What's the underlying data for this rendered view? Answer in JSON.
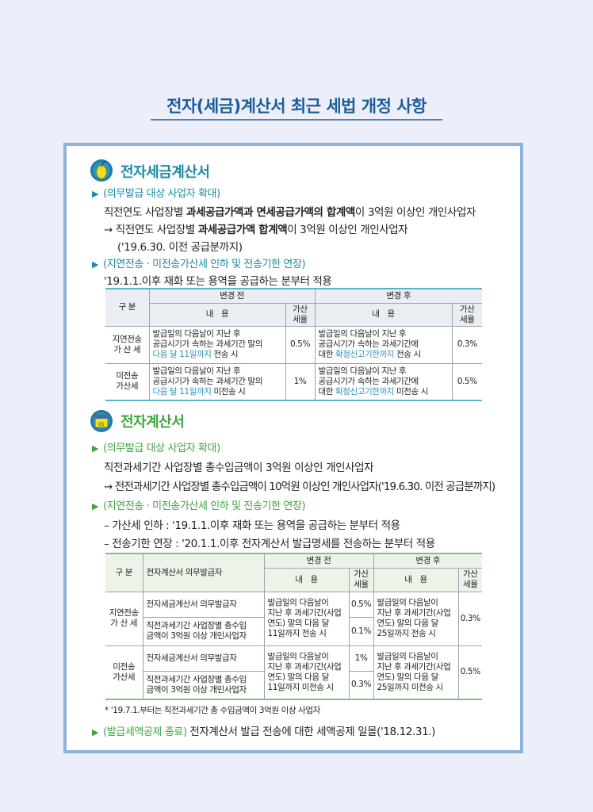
{
  "title": "전자(세금)계산서 최근 세법 개정 사항",
  "colors": {
    "section1": "#1a8aa6",
    "section2": "#3ea43e",
    "title": "#1b5c9c",
    "highlight": "#2a8fc0"
  },
  "section1": {
    "icon": "mouse-icon",
    "heading": "전자세금계산서",
    "sub1": "(의무발급 대상 사업자 확대)",
    "line1": [
      {
        "t": "직전연도 사업장별 ",
        "b": false
      },
      {
        "t": "과세공급가액과 면세공급가액의 합계액",
        "b": true
      },
      {
        "t": "이 3억원 이상인 개인사업자",
        "b": false
      }
    ],
    "line2": [
      {
        "t": "→ 직전연도 사업장별 ",
        "b": false
      },
      {
        "t": "과세공급가액 합계액",
        "b": true
      },
      {
        "t": "이 3억원 이상인 개인사업자",
        "b": false
      }
    ],
    "line3": "('19.6.30. 이전 공급분까지)",
    "sub2": "(지연전송 · 미전송가산세 인하 및 전송기한 연장)",
    "line4": "'19.1.1.이후 재화 또는 용역을 공급하는 분부터 적용",
    "table": {
      "h_category": "구 분",
      "h_before": "변경 전",
      "h_after": "변경 후",
      "h_content": "내　용",
      "h_rate": "가산\n세율",
      "rows": [
        {
          "label": "지연전송\n가 산 세",
          "before_pre": "발급일의 다음날이 지난 후\n공급시기가 속하는 과세기간 말의\n",
          "before_hl": "다음 달 11일까지",
          "before_post": " 전송 시",
          "before_rate": "0.5%",
          "after_pre": "발급일의 다음날이 지난 후\n공급시기가 속하는 과세기간에\n대한 ",
          "after_hl": "확정신고기한까지",
          "after_post": " 전송 시",
          "after_rate": "0.3%"
        },
        {
          "label": "미전송\n가산세",
          "before_pre": "발급일의 다음날이 지난 후\n공급시기가 속하는 과세기간 말의\n",
          "before_hl": "다음 달 11일까지",
          "before_post": " 미전송 시",
          "before_rate": "1%",
          "after_pre": "발급일의 다음날이 지난 후\n공급시기가 속하는 과세기간에\n대한 ",
          "after_hl": "확정신고기한까지",
          "after_post": " 미전송 시",
          "after_rate": "0.5%"
        }
      ]
    }
  },
  "section2": {
    "icon": "calendar-icon",
    "icon_text": "01",
    "heading": "전자계산서",
    "sub1": "(의무발급 대상 사업자 확대)",
    "line1": "직전과세기간 사업장별 총수입금액이 3억원 이상인 개인사업자",
    "line2": "→ 전전과세기간 사업장별 총수입금액이 10억원 이상인 개인사업자('19.6.30. 이전 공급분까지)",
    "sub2": "(지연전송 · 미전송가산세 인하 및 전송기한 연장)",
    "line3": "– 가산세 인하 : '19.1.1.이후 재화 또는 용역을 공급하는 분부터 적용",
    "line4": "– 전송기한 연장 : '20.1.1.이후 전자계산서 발급명세를 전송하는 분부터 적용",
    "table": {
      "h_category": "구 분",
      "h_issuer": "전자계산서 의무발급자",
      "h_before": "변경 전",
      "h_after": "변경 후",
      "h_content": "내　용",
      "h_rate": "가산\n세율",
      "groups": [
        {
          "label": "지연전송\n가 산 세",
          "issuer1": "전자세금계산서 의무발급자",
          "issuer2": "직전과세기간 사업장별 총수입\n금액이 3억원 이상 개인사업자",
          "before": "발급일의 다음날이\n지난 후 과세기간(사업\n연도) 말의 다음 달\n11일까지 전송 시",
          "rate1": "0.5%",
          "rate2": "0.1%",
          "after": "발급일의 다음날이\n지난 후 과세기간(사업\n연도) 말의 다음 달\n25일까지 전송 시",
          "after_rate": "0.3%"
        },
        {
          "label": "미전송\n가산세",
          "issuer1": "전자세금계산서 의무발급자",
          "issuer2": "직전과세기간 사업장별 총수입\n금액이 3억원 이상 개인사업자",
          "before": "발급일의 다음날이\n지난 후 과세기간(사업\n연도) 말의 다음 달\n11일까지 미전송 시",
          "rate1": "1%",
          "rate2": "0.3%",
          "after": "발급일의 다음날이\n지난 후 과세기간(사업\n연도) 말의 다음 달\n25일까지 미전송 시",
          "after_rate": "0.5%"
        }
      ]
    },
    "footnote": "* '19.7.1.부터는 직전과세기간 총 수입금액이 3억원 이상 사업자",
    "sub3": "(발급세액공제 종료)",
    "line5": "전자계산서 발급 전송에 대한 세액공제 일몰('18.12.31.)"
  }
}
